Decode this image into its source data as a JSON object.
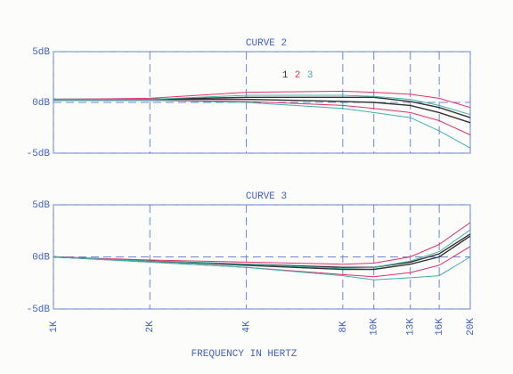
{
  "chart_data": [
    {
      "type": "line",
      "title": "CURVE 2",
      "xscale": "log",
      "x": [
        1000,
        2000,
        4000,
        8000,
        10000,
        13000,
        16000,
        20000
      ],
      "xlim": [
        1000,
        20000
      ],
      "xticks": [
        1000,
        2000,
        4000,
        8000,
        10000,
        13000,
        16000,
        20000
      ],
      "ylim": [
        -5,
        5
      ],
      "yticks": [
        {
          "value": 5,
          "label": "5dB"
        },
        {
          "value": 0,
          "label": "0dB"
        },
        {
          "value": -5,
          "label": "-5dB"
        }
      ],
      "grid": true,
      "legend": "top",
      "series": [
        {
          "name": "1",
          "color": "#333333",
          "lines": [
            [
              0.3,
              0.3,
              0.5,
              0.5,
              0.5,
              0.1,
              -0.5,
              -1.5
            ],
            [
              0.3,
              0.3,
              0.3,
              0.1,
              0,
              -0.3,
              -1,
              -2
            ]
          ]
        },
        {
          "name": "2",
          "color": "#e0306a",
          "lines": [
            [
              0.3,
              0.4,
              1,
              1.1,
              1,
              0.8,
              0.4,
              -0.5
            ],
            [
              0.2,
              0.2,
              0.1,
              -0.3,
              -0.6,
              -1,
              -1.8,
              -3.2
            ]
          ]
        },
        {
          "name": "3",
          "color": "#3fb0a8",
          "lines": [
            [
              0.3,
              0.3,
              0.7,
              0.7,
              0.6,
              0.3,
              -0.3,
              -1.2
            ],
            [
              0.2,
              0.2,
              0,
              -0.6,
              -1,
              -1.5,
              -2.8,
              -4.5
            ]
          ]
        }
      ]
    },
    {
      "type": "line",
      "title": "CURVE 3",
      "xscale": "log",
      "xlabel": "FREQUENCY IN HERTZ",
      "x": [
        1000,
        2000,
        4000,
        8000,
        10000,
        13000,
        16000,
        20000
      ],
      "xlim": [
        1000,
        20000
      ],
      "xticks": [
        {
          "value": 1000,
          "label": "1K"
        },
        {
          "value": 2000,
          "label": "2K"
        },
        {
          "value": 4000,
          "label": "4K"
        },
        {
          "value": 8000,
          "label": "8K"
        },
        {
          "value": 10000,
          "label": "10K"
        },
        {
          "value": 13000,
          "label": "13K"
        },
        {
          "value": 16000,
          "label": "16K"
        },
        {
          "value": 20000,
          "label": "20K"
        }
      ],
      "ylim": [
        -5,
        5
      ],
      "yticks": [
        {
          "value": 5,
          "label": "5dB"
        },
        {
          "value": 0,
          "label": "0dB"
        },
        {
          "value": -5,
          "label": "-5dB"
        }
      ],
      "grid": true,
      "series": [
        {
          "color": "#333333",
          "lines": [
            [
              0,
              -0.4,
              -0.7,
              -1,
              -1,
              -0.5,
              0.3,
              2.2
            ],
            [
              0,
              -0.4,
              -0.8,
              -1.2,
              -1.2,
              -0.7,
              0,
              2
            ]
          ]
        },
        {
          "color": "#e0306a",
          "lines": [
            [
              0,
              -0.3,
              -0.5,
              -0.7,
              -0.6,
              0,
              1.2,
              3.3
            ],
            [
              0,
              -0.5,
              -1,
              -1.7,
              -1.9,
              -1.5,
              -0.8,
              1
            ]
          ]
        },
        {
          "color": "#3fb0a8",
          "lines": [
            [
              0,
              -0.4,
              -0.7,
              -1.1,
              -1,
              -0.4,
              0.5,
              2.6
            ],
            [
              0,
              -0.5,
              -1,
              -1.8,
              -2.2,
              -2,
              -1.8,
              0
            ]
          ]
        }
      ]
    }
  ]
}
